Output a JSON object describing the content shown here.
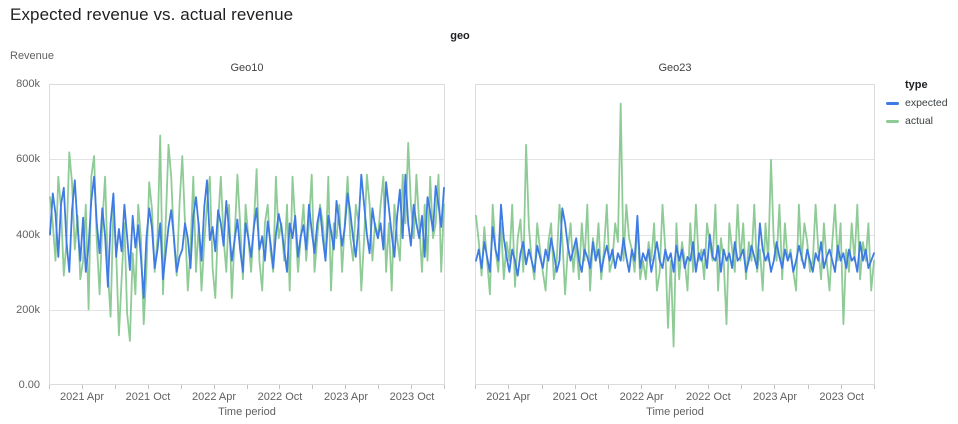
{
  "title": "Expected revenue vs. actual revenue",
  "pivot_header": "geo",
  "y_axis_title": "Revenue",
  "x_axis_title": "Time period",
  "legend": {
    "title": "type",
    "items": [
      {
        "label": "expected",
        "color": "#3e7ce4"
      },
      {
        "label": "actual",
        "color": "#8fcb96"
      }
    ]
  },
  "colors": {
    "expected_line": "#3e7ce4",
    "actual_line": "#8fcb96",
    "gridline": "#e3e3e3",
    "plot_border": "#dadce0",
    "tick_mark": "#c2c2c2",
    "axis_text": "#616161",
    "title_text": "#202124"
  },
  "chart_data": [
    {
      "type": "line",
      "facet": "Geo10",
      "x_unit": "week",
      "x_range": [
        "2021 Jan",
        "2023 Dec"
      ],
      "x_months_total": 36,
      "values_unit": "revenue in thousands (k)",
      "ylim": [
        0,
        800000
      ],
      "grid": "horizontal-only",
      "y_ticks": [
        {
          "label": "800k",
          "value": 800
        },
        {
          "label": "600k",
          "value": 600
        },
        {
          "label": "400k",
          "value": 400
        },
        {
          "label": "200k",
          "value": 200
        },
        {
          "label": "0.00",
          "value": 0
        }
      ],
      "x_ticks": [
        {
          "label": "2021 Apr",
          "month": 3
        },
        {
          "label": "2021 Oct",
          "month": 9
        },
        {
          "label": "2022 Apr",
          "month": 15
        },
        {
          "label": "2022 Oct",
          "month": 21
        },
        {
          "label": "2023 Apr",
          "month": 27
        },
        {
          "label": "2023 Oct",
          "month": 33
        }
      ],
      "tick_months_all": [
        0,
        3,
        6,
        9,
        12,
        15,
        18,
        21,
        24,
        27,
        30,
        33,
        36
      ],
      "series": [
        {
          "name": "expected",
          "color": "#3e7ce4",
          "values": [
            400,
            510,
            455,
            340,
            480,
            525,
            380,
            300,
            465,
            545,
            420,
            330,
            445,
            300,
            370,
            490,
            555,
            430,
            350,
            470,
            395,
            260,
            430,
            510,
            340,
            415,
            355,
            480,
            395,
            305,
            450,
            365,
            425,
            340,
            230,
            390,
            470,
            420,
            310,
            360,
            430,
            280,
            350,
            420,
            465,
            390,
            300,
            340,
            360,
            430,
            390,
            310,
            450,
            500,
            420,
            330,
            475,
            545,
            385,
            420,
            355,
            465,
            430,
            370,
            490,
            410,
            330,
            385,
            440,
            360,
            300,
            430,
            390,
            340,
            420,
            470,
            360,
            395,
            330,
            435,
            380,
            310,
            400,
            455,
            420,
            360,
            300,
            430,
            390,
            450,
            340,
            395,
            425,
            360,
            480,
            410,
            350,
            430,
            470,
            390,
            330,
            450,
            410,
            360,
            490,
            430,
            370,
            420,
            510,
            460,
            390,
            340,
            430,
            560,
            480,
            400,
            350,
            470,
            420,
            390,
            430,
            360,
            540,
            470,
            400,
            340,
            450,
            520,
            390,
            560,
            430,
            370,
            480,
            430,
            390,
            450,
            340,
            500,
            460,
            410,
            530,
            480,
            420,
            525
          ]
        },
        {
          "name": "actual",
          "color": "#8fcb96",
          "values": [
            500,
            430,
            330,
            555,
            470,
            290,
            380,
            620,
            540,
            360,
            450,
            280,
            330,
            480,
            200,
            555,
            610,
            380,
            240,
            430,
            555,
            300,
            180,
            470,
            360,
            130,
            280,
            430,
            190,
            115,
            350,
            240,
            480,
            390,
            160,
            300,
            540,
            470,
            300,
            390,
            665,
            240,
            430,
            640,
            555,
            380,
            290,
            480,
            610,
            430,
            250,
            360,
            555,
            300,
            430,
            250,
            380,
            480,
            555,
            310,
            230,
            430,
            555,
            390,
            300,
            480,
            230,
            390,
            560,
            430,
            280,
            480,
            390,
            300,
            430,
            575,
            330,
            250,
            430,
            480,
            360,
            300,
            555,
            390,
            430,
            330,
            480,
            250,
            555,
            430,
            300,
            390,
            480,
            330,
            430,
            560,
            300,
            390,
            480,
            430,
            330,
            555,
            250,
            430,
            390,
            480,
            300,
            430,
            555,
            390,
            330,
            480,
            430,
            250,
            390,
            560,
            480,
            330,
            430,
            390,
            480,
            555,
            300,
            430,
            250,
            480,
            390,
            330,
            560,
            430,
            645,
            480,
            390,
            560,
            430,
            300,
            480,
            330,
            555,
            390,
            430,
            560,
            300,
            480
          ]
        }
      ]
    },
    {
      "type": "line",
      "facet": "Geo23",
      "x_unit": "week",
      "x_range": [
        "2021 Jan",
        "2023 Dec"
      ],
      "x_months_total": 36,
      "values_unit": "revenue in thousands (k)",
      "ylim": [
        0,
        800000
      ],
      "grid": "horizontal-only",
      "y_ticks": [
        {
          "label": "800k",
          "value": 800
        },
        {
          "label": "600k",
          "value": 600
        },
        {
          "label": "400k",
          "value": 400
        },
        {
          "label": "200k",
          "value": 200
        },
        {
          "label": "0.00",
          "value": 0
        }
      ],
      "x_ticks": [
        {
          "label": "2021 Apr",
          "month": 3
        },
        {
          "label": "2021 Oct",
          "month": 9
        },
        {
          "label": "2022 Apr",
          "month": 15
        },
        {
          "label": "2022 Oct",
          "month": 21
        },
        {
          "label": "2023 Apr",
          "month": 27
        },
        {
          "label": "2023 Oct",
          "month": 33
        }
      ],
      "tick_months_all": [
        0,
        3,
        6,
        9,
        12,
        15,
        18,
        21,
        24,
        27,
        30,
        33,
        36
      ],
      "series": [
        {
          "name": "expected",
          "color": "#3e7ce4",
          "values": [
            330,
            360,
            310,
            380,
            340,
            300,
            420,
            360,
            330,
            480,
            390,
            340,
            300,
            360,
            330,
            290,
            350,
            380,
            320,
            360,
            330,
            300,
            370,
            340,
            310,
            360,
            330,
            390,
            350,
            300,
            330,
            470,
            430,
            370,
            330,
            360,
            390,
            330,
            300,
            360,
            340,
            310,
            380,
            330,
            360,
            300,
            340,
            370,
            330,
            360,
            310,
            350,
            330,
            390,
            340,
            300,
            360,
            330,
            450,
            310,
            350,
            330,
            360,
            300,
            340,
            380,
            330,
            310,
            360,
            330,
            350,
            300,
            370,
            330,
            360,
            310,
            340,
            330,
            380,
            300,
            350,
            330,
            360,
            310,
            400,
            340,
            330,
            370,
            300,
            360,
            330,
            350,
            310,
            380,
            330,
            340,
            360,
            300,
            330,
            370,
            340,
            310,
            430,
            360,
            330,
            350,
            300,
            330,
            380,
            340,
            310,
            360,
            330,
            350,
            300,
            330,
            370,
            340,
            310,
            360,
            330,
            300,
            350,
            330,
            380,
            310,
            340,
            360,
            330,
            300,
            370,
            330,
            350,
            310,
            360,
            330,
            340,
            300,
            380,
            330,
            360,
            310,
            330,
            350
          ]
        },
        {
          "name": "actual",
          "color": "#8fcb96",
          "values": [
            450,
            380,
            290,
            420,
            330,
            240,
            480,
            360,
            300,
            430,
            280,
            380,
            330,
            480,
            260,
            390,
            440,
            300,
            640,
            420,
            330,
            280,
            430,
            360,
            300,
            250,
            380,
            430,
            280,
            330,
            480,
            390,
            240,
            360,
            430,
            300,
            380,
            280,
            430,
            330,
            480,
            250,
            390,
            330,
            430,
            280,
            360,
            480,
            300,
            330,
            430,
            380,
            750,
            330,
            480,
            390,
            360,
            300,
            430,
            280,
            330,
            280,
            380,
            330,
            430,
            250,
            300,
            480,
            360,
            150,
            330,
            100,
            430,
            280,
            380,
            330,
            250,
            430,
            300,
            480,
            330,
            360,
            280,
            430,
            380,
            330,
            480,
            250,
            390,
            330,
            160,
            430,
            360,
            300,
            480,
            330,
            430,
            280,
            380,
            330,
            480,
            300,
            360,
            250,
            430,
            330,
            600,
            380,
            330,
            480,
            280,
            430,
            330,
            360,
            300,
            250,
            480,
            330,
            430,
            380,
            300,
            330,
            480,
            360,
            280,
            430,
            330,
            250,
            380,
            480,
            330,
            430,
            160,
            360,
            300,
            430,
            330,
            480,
            280,
            380,
            330,
            430,
            250,
            330
          ]
        }
      ]
    }
  ]
}
